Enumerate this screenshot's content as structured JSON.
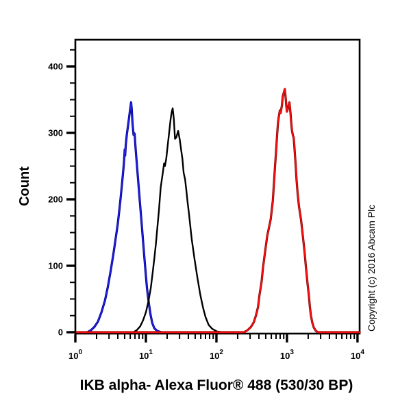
{
  "copyright_notice": "Copyright (c) 2016 Abcam Plc",
  "colors": {
    "background": "#ffffff",
    "axis": "#000000",
    "blue_series": "#2222e0",
    "blue_series_core": "#000099",
    "black_series": "#000000",
    "red_series": "#ff1010",
    "red_series_core": "#8a0000"
  },
  "chart_data": {
    "type": "line",
    "subtype": "flow cytometry histogram overlay",
    "title": "",
    "xlabel": "IKB alpha- Alexa Fluor® 488 (530/30 BP)",
    "ylabel": "Count",
    "x_scale": "log10",
    "xlim_log10": [
      0,
      4.03
    ],
    "ylim": [
      0,
      440
    ],
    "x_tick_base": "10",
    "x_major_tick_exponents": [
      0,
      1,
      2,
      3,
      4
    ],
    "x_minor_ticks": "2 to 9 within each decade",
    "y_major_ticks": [
      0,
      100,
      200,
      300,
      400
    ],
    "y_minor_tick_step": 25,
    "grid": false,
    "legend": "none",
    "series": [
      {
        "name": "blue-histogram",
        "color": "#2222e0",
        "approx_peak_x": 6.2,
        "approx_peak_count": 346,
        "points": [
          [
            0.17,
            0
          ],
          [
            0.22,
            3
          ],
          [
            0.27,
            8
          ],
          [
            0.32,
            16
          ],
          [
            0.37,
            30
          ],
          [
            0.42,
            48
          ],
          [
            0.46,
            68
          ],
          [
            0.5,
            92
          ],
          [
            0.54,
            118
          ],
          [
            0.57,
            140
          ],
          [
            0.6,
            162
          ],
          [
            0.62,
            180
          ],
          [
            0.64,
            200
          ],
          [
            0.66,
            222
          ],
          [
            0.68,
            244
          ],
          [
            0.69,
            258
          ],
          [
            0.7,
            275
          ],
          [
            0.706,
            266
          ],
          [
            0.715,
            282
          ],
          [
            0.73,
            298
          ],
          [
            0.75,
            313
          ],
          [
            0.77,
            330
          ],
          [
            0.79,
            346
          ],
          [
            0.8,
            334
          ],
          [
            0.81,
            315
          ],
          [
            0.825,
            297
          ],
          [
            0.84,
            299
          ],
          [
            0.855,
            276
          ],
          [
            0.875,
            249
          ],
          [
            0.895,
            222
          ],
          [
            0.915,
            196
          ],
          [
            0.935,
            170
          ],
          [
            0.955,
            144
          ],
          [
            0.975,
            117
          ],
          [
            0.995,
            91
          ],
          [
            1.015,
            67
          ],
          [
            1.04,
            45
          ],
          [
            1.065,
            27
          ],
          [
            1.09,
            14
          ],
          [
            1.12,
            6
          ],
          [
            1.16,
            2
          ],
          [
            1.22,
            0
          ]
        ]
      },
      {
        "name": "black-histogram",
        "color": "#000000",
        "approx_peak_x": 24,
        "approx_peak_count": 337,
        "points": [
          [
            0.82,
            0
          ],
          [
            0.87,
            3
          ],
          [
            0.92,
            9
          ],
          [
            0.96,
            18
          ],
          [
            1.0,
            30
          ],
          [
            1.035,
            46
          ],
          [
            1.07,
            67
          ],
          [
            1.095,
            89
          ],
          [
            1.12,
            111
          ],
          [
            1.14,
            131
          ],
          [
            1.16,
            155
          ],
          [
            1.185,
            183
          ],
          [
            1.21,
            218
          ],
          [
            1.24,
            240
          ],
          [
            1.258,
            254
          ],
          [
            1.27,
            250
          ],
          [
            1.29,
            262
          ],
          [
            1.31,
            282
          ],
          [
            1.33,
            301
          ],
          [
            1.35,
            320
          ],
          [
            1.365,
            331
          ],
          [
            1.38,
            337
          ],
          [
            1.395,
            322
          ],
          [
            1.413,
            291
          ],
          [
            1.43,
            293
          ],
          [
            1.458,
            303
          ],
          [
            1.48,
            290
          ],
          [
            1.5,
            274
          ],
          [
            1.518,
            261
          ],
          [
            1.535,
            240
          ],
          [
            1.556,
            230
          ],
          [
            1.575,
            212
          ],
          [
            1.59,
            197
          ],
          [
            1.61,
            179
          ],
          [
            1.65,
            140
          ],
          [
            1.69,
            110
          ],
          [
            1.73,
            82
          ],
          [
            1.77,
            57
          ],
          [
            1.81,
            37
          ],
          [
            1.845,
            23
          ],
          [
            1.89,
            11
          ],
          [
            1.94,
            5
          ],
          [
            2.01,
            1
          ],
          [
            2.09,
            0
          ]
        ]
      },
      {
        "name": "red-histogram",
        "color": "#ff1010",
        "approx_peak_x": 930,
        "approx_peak_count": 366,
        "points": [
          [
            0.02,
            0
          ],
          [
            1.0,
            0
          ],
          [
            2.0,
            0
          ],
          [
            2.39,
            0
          ],
          [
            2.44,
            3
          ],
          [
            2.49,
            8
          ],
          [
            2.53,
            15
          ],
          [
            2.56,
            25
          ],
          [
            2.59,
            38
          ],
          [
            2.61,
            56
          ],
          [
            2.64,
            76
          ],
          [
            2.66,
            97
          ],
          [
            2.69,
            121
          ],
          [
            2.72,
            145
          ],
          [
            2.77,
            170
          ],
          [
            2.8,
            198
          ],
          [
            2.815,
            224
          ],
          [
            2.83,
            248
          ],
          [
            2.845,
            272
          ],
          [
            2.86,
            296
          ],
          [
            2.872,
            315
          ],
          [
            2.885,
            325
          ],
          [
            2.9,
            334
          ],
          [
            2.91,
            330
          ],
          [
            2.928,
            341
          ],
          [
            2.94,
            355
          ],
          [
            2.97,
            366
          ],
          [
            2.982,
            352
          ],
          [
            2.99,
            341
          ],
          [
            3.0,
            332
          ],
          [
            3.018,
            339
          ],
          [
            3.035,
            346
          ],
          [
            3.05,
            330
          ],
          [
            3.06,
            316
          ],
          [
            3.072,
            303
          ],
          [
            3.085,
            296
          ],
          [
            3.095,
            293
          ],
          [
            3.105,
            280
          ],
          [
            3.115,
            264
          ],
          [
            3.125,
            248
          ],
          [
            3.135,
            231
          ],
          [
            3.15,
            210
          ],
          [
            3.17,
            190
          ],
          [
            3.2,
            169
          ],
          [
            3.225,
            145
          ],
          [
            3.25,
            120
          ],
          [
            3.27,
            97
          ],
          [
            3.29,
            75
          ],
          [
            3.31,
            55
          ],
          [
            3.325,
            38
          ],
          [
            3.34,
            25
          ],
          [
            3.36,
            14
          ],
          [
            3.38,
            7
          ],
          [
            3.41,
            2
          ],
          [
            3.44,
            0
          ],
          [
            3.6,
            0
          ],
          [
            3.8,
            0
          ],
          [
            4.03,
            0
          ]
        ]
      }
    ]
  }
}
